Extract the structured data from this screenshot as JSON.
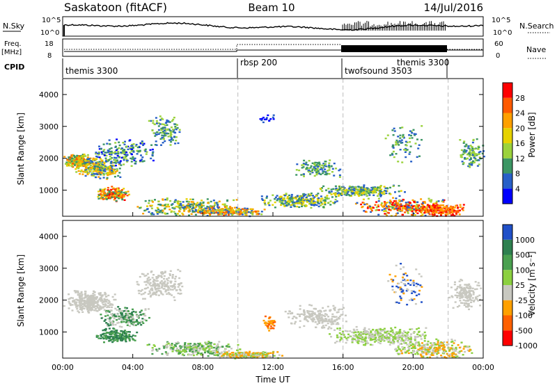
{
  "header": {
    "station": "Saskatoon (fitACF)",
    "beam": "Beam 10",
    "date": "14/Jul/2016"
  },
  "noise_panel": {
    "left_label": "N.Sky",
    "left_ticks": [
      "10^5",
      "10^0"
    ],
    "right_ticks": [
      "10^5",
      "10^0"
    ],
    "right_label": "N.Search",
    "right_label_style": "dotted"
  },
  "freq_panel": {
    "left_label_1": "Freq.",
    "left_label_2": "[MHz]",
    "left_ticks": [
      "18",
      "8"
    ],
    "right_ticks": [
      "60",
      "0"
    ],
    "right_label": "Nave",
    "right_label_style": "dotted"
  },
  "cpid": {
    "label": "CPID",
    "modes": [
      {
        "name": "themis 3300",
        "start_hour": 0
      },
      {
        "name": "rbsp 200",
        "start_hour": 10
      },
      {
        "name": "twofsound 3503",
        "start_hour": 16
      },
      {
        "name": "themis 3300",
        "start_hour": 22
      }
    ]
  },
  "chart_data": [
    {
      "type": "heatmap",
      "parameter": "power",
      "ylabel": "Slant Range [km]",
      "xlabel": "",
      "ylim": [
        180,
        4500
      ],
      "yticks": [
        "4000",
        "3000",
        "2000",
        "1000"
      ],
      "ytick_values": [
        4000,
        3000,
        2000,
        1000
      ],
      "xlim_hours": [
        0,
        24
      ],
      "colorbar": {
        "label": "Power [dB]",
        "ticks": [
          "28",
          "24",
          "20",
          "16",
          "12",
          "8",
          "4"
        ],
        "colors": [
          "#ff0000",
          "#ff5a00",
          "#ffa000",
          "#e6d200",
          "#9bd23c",
          "#3c9664",
          "#2860c8",
          "#0000ff"
        ]
      }
    },
    {
      "type": "heatmap",
      "parameter": "velocity",
      "ylabel": "Slant Range [km]",
      "xlabel": "Time UT",
      "ylim": [
        180,
        4500
      ],
      "yticks": [
        "4000",
        "3000",
        "2000",
        "1000"
      ],
      "ytick_values": [
        4000,
        3000,
        2000,
        1000
      ],
      "xticks": [
        "00:00",
        "04:00",
        "08:00",
        "12:00",
        "16:00",
        "20:00",
        "00:00"
      ],
      "xtick_hours": [
        0,
        4,
        8,
        12,
        16,
        20,
        24
      ],
      "colorbar": {
        "label": "Velocity [m s⁻¹]",
        "ticks": [
          "1000",
          "500",
          "100",
          "25",
          "-25",
          "-100",
          "-500",
          "-1000"
        ],
        "colors": [
          "#2050c8",
          "#2e8050",
          "#4aa050",
          "#8cd040",
          "#c8c8c0",
          "#ffa000",
          "#ff6000",
          "#ff0000"
        ]
      }
    }
  ]
}
